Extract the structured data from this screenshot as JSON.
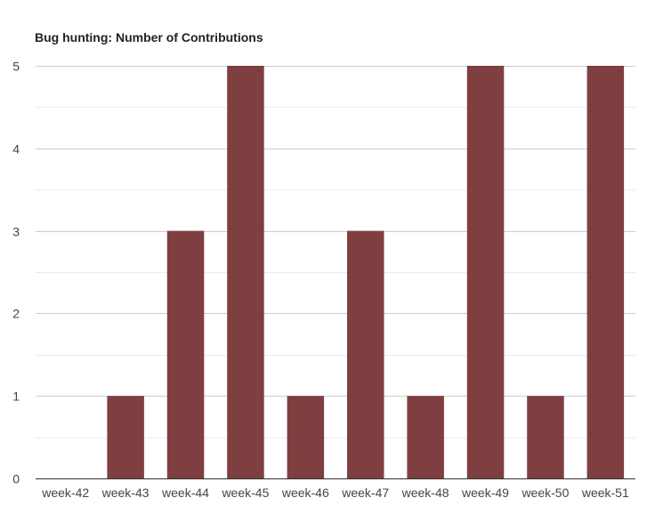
{
  "chart_data": {
    "type": "bar",
    "title": "Bug hunting: Number of Contributions",
    "xlabel": "",
    "ylabel": "",
    "categories": [
      "week-42",
      "week-43",
      "week-44",
      "week-45",
      "week-46",
      "week-47",
      "week-48",
      "week-49",
      "week-50",
      "week-51"
    ],
    "values": [
      0,
      1,
      3,
      5,
      1,
      3,
      1,
      5,
      1,
      5
    ],
    "ylim": [
      0,
      5
    ],
    "yticks": [
      0,
      1,
      2,
      3,
      4,
      5
    ],
    "grid": true,
    "legend": "none",
    "colors": {
      "bar": "#7f3f40",
      "gridline_major": "#cccccc",
      "gridline_minor": "#ebebeb",
      "axis": "#333333"
    }
  }
}
